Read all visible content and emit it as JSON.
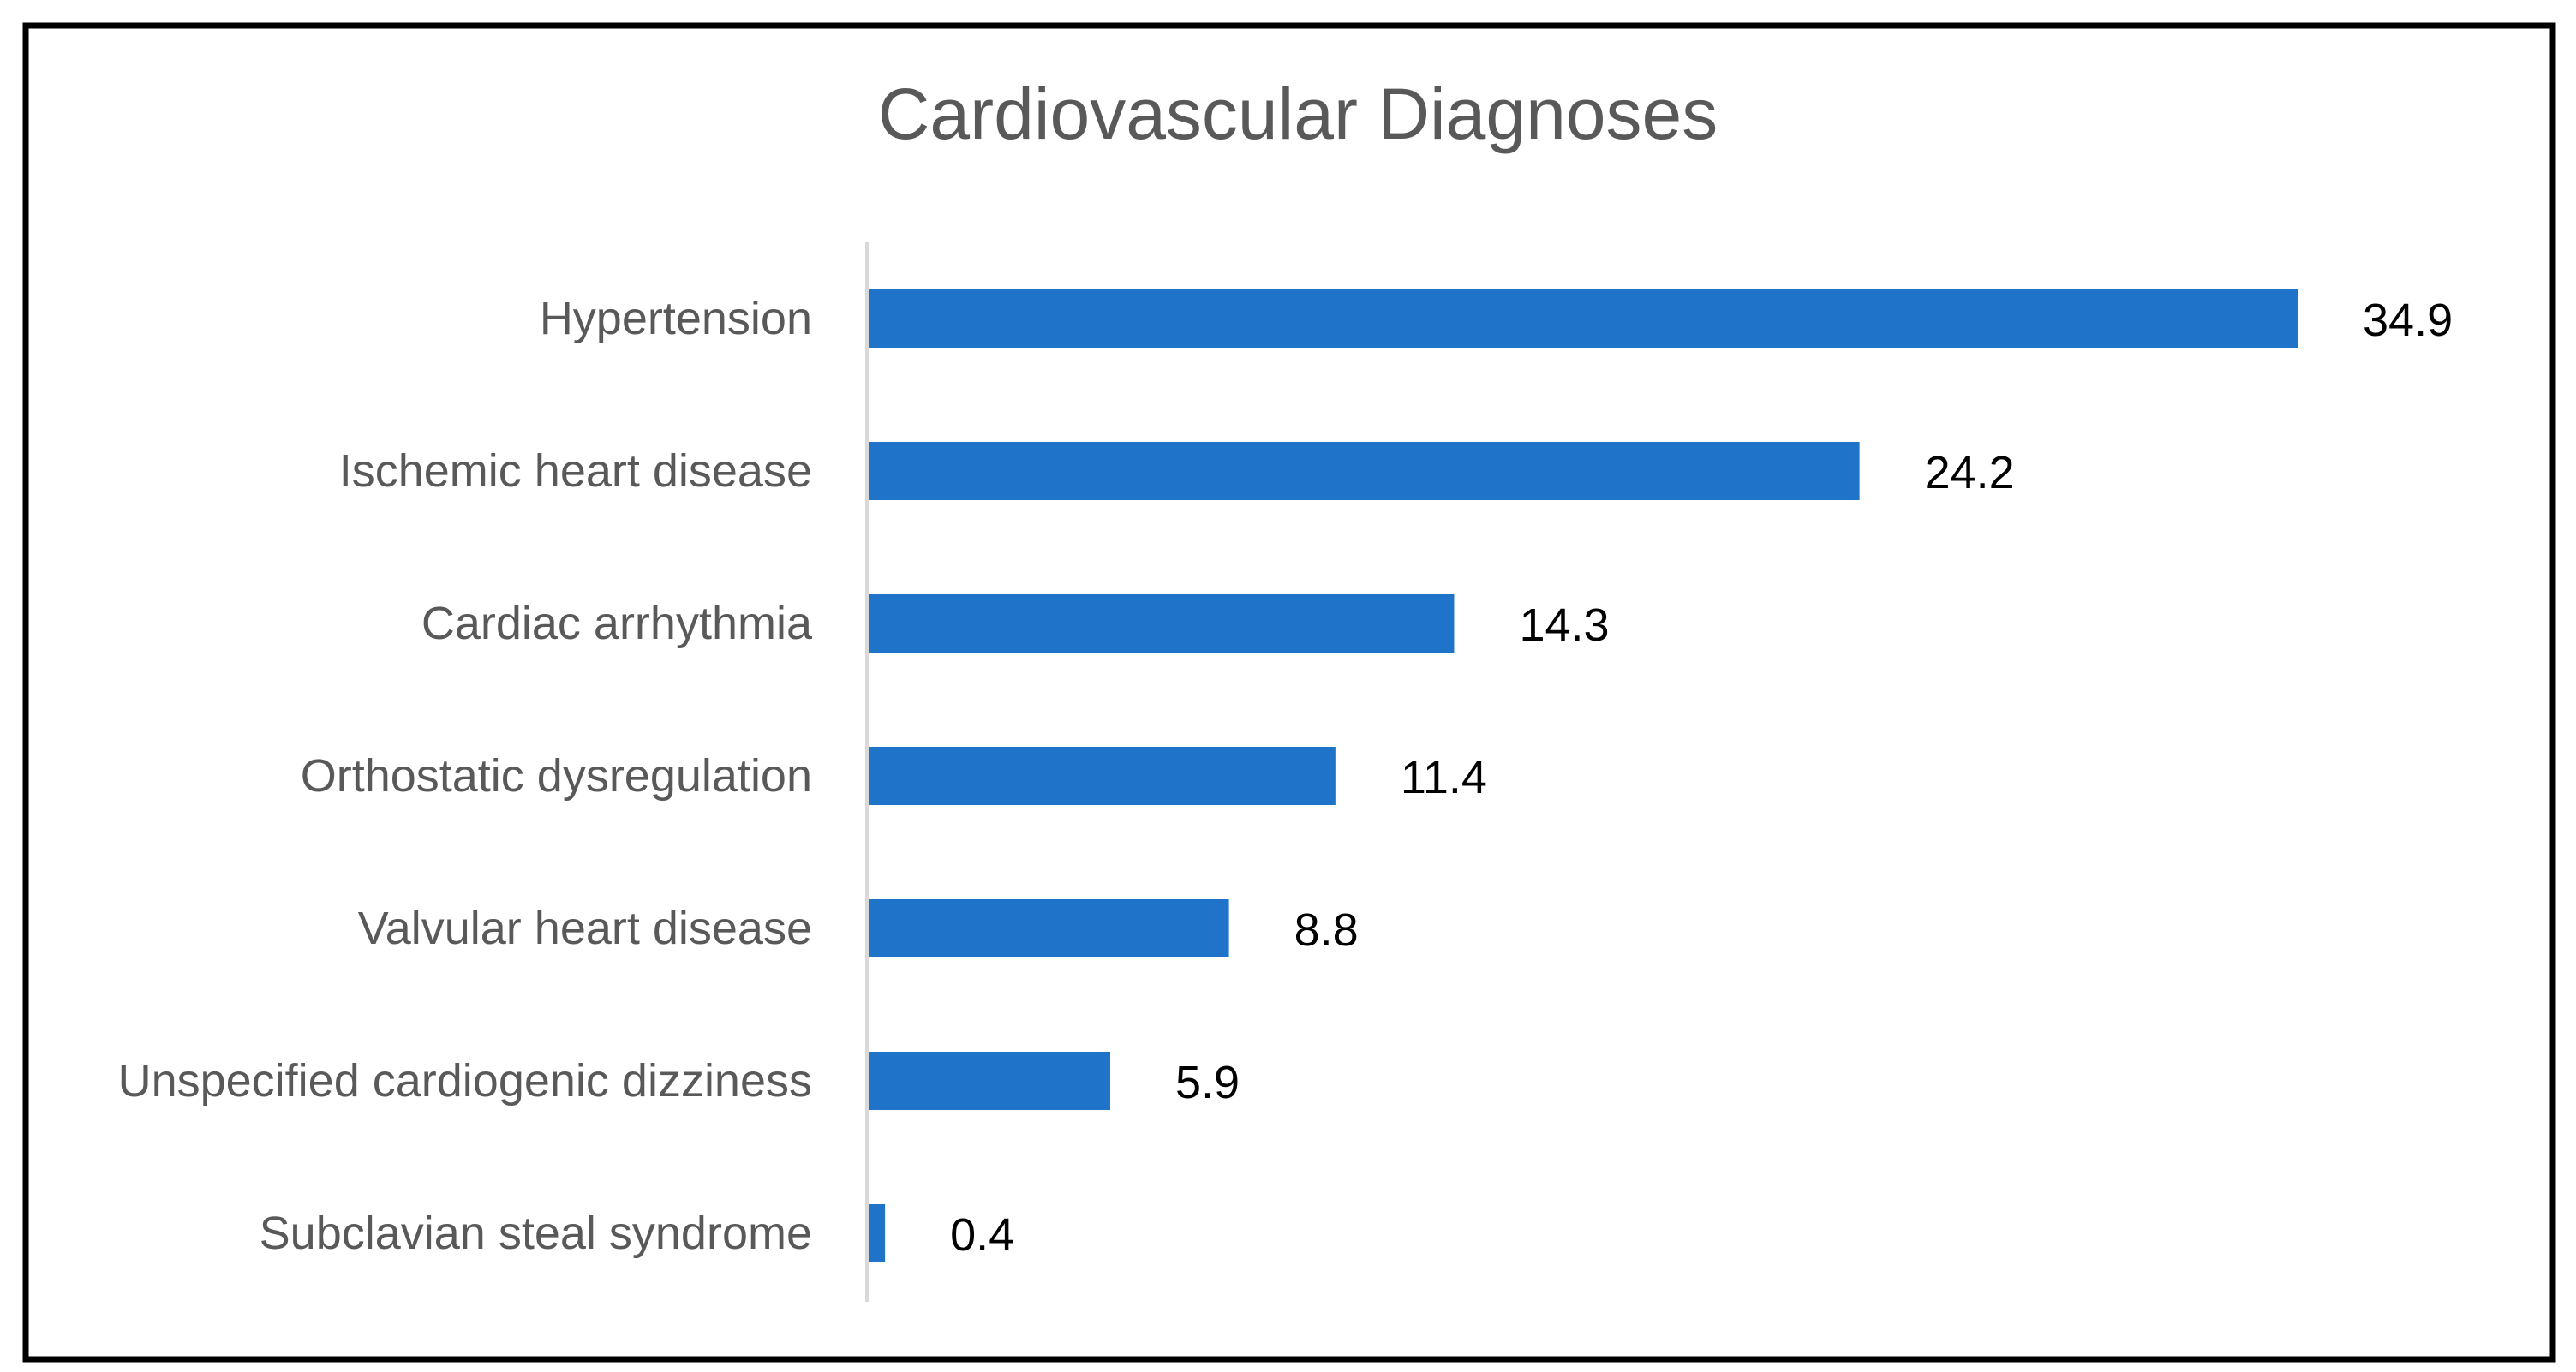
{
  "chart_data": {
    "type": "bar",
    "orientation": "horizontal",
    "title": "Cardiovascular Diagnoses",
    "xlabel": "",
    "ylabel": "",
    "categories": [
      "Hypertension",
      "Ischemic heart disease",
      "Cardiac arrhythmia",
      "Orthostatic dysregulation",
      "Valvular heart disease",
      "Unspecified cardiogenic dizziness",
      "Subclavian steal syndrome"
    ],
    "values": [
      34.9,
      24.2,
      14.3,
      11.4,
      8.8,
      5.9,
      0.4
    ],
    "data_labels": [
      "34.9",
      "24.2",
      "14.3",
      "11.4",
      "8.8",
      "5.9",
      "0.4"
    ],
    "xlim": [
      0,
      40
    ],
    "grid": false,
    "legend": "none",
    "colors": {
      "bar": "#1F73C9",
      "frame": "#000000",
      "axis": "#D9D9D9",
      "title": "#595959",
      "category_text": "#595959",
      "value_text": "#000000"
    }
  }
}
